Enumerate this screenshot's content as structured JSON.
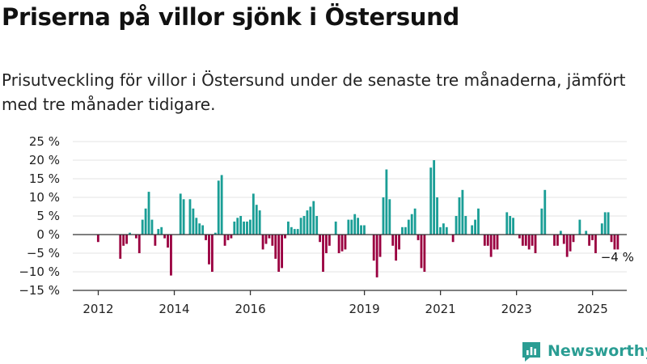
{
  "title": "Priserna på villor sjönk i Östersund",
  "subtitle": "Prisutveckling för villor i Östersund under de senaste tre månaderna, jämfört med tre månader tidigare.",
  "brand": "Newsworthy",
  "colors": {
    "positive": "#1a9e96",
    "negative": "#9a0040",
    "grid": "#e3e3e3",
    "axis": "#333333",
    "brand": "#2a9d93"
  },
  "chart_data": {
    "type": "bar",
    "ylim": [
      -15,
      25
    ],
    "yticks": [
      25,
      20,
      15,
      10,
      5,
      0,
      -5,
      -10,
      -15
    ],
    "ytick_labels": [
      "25 %",
      "20 %",
      "15 %",
      "10 %",
      "5 %",
      "0 %",
      "−5 %",
      "−10 %",
      "−15 %"
    ],
    "xticks": [
      2012,
      2014,
      2016,
      2019,
      2021,
      2023,
      2025
    ],
    "start_year": 2011.33,
    "bar_months": 1,
    "grid": true,
    "last_value_label": "−4 %",
    "values": [
      0,
      0,
      0,
      0,
      0,
      0,
      0,
      0,
      -2,
      0,
      0,
      0,
      0,
      0,
      0,
      -6.5,
      -3,
      -2.5,
      0.5,
      0,
      -1,
      -5,
      4,
      7,
      11.5,
      4,
      -3,
      1.5,
      2,
      -1,
      -3.5,
      -11,
      0,
      0,
      11,
      9.5,
      0,
      9.5,
      7,
      4.5,
      3,
      2.5,
      -1.5,
      -8,
      -10,
      0.5,
      14.5,
      16,
      -3,
      -1.5,
      -1,
      3.5,
      4.5,
      5,
      3.5,
      3.5,
      4,
      11,
      8,
      6.5,
      -4,
      -2.5,
      -1,
      -3,
      -6.5,
      -10,
      -9,
      -1,
      3.5,
      2,
      1.5,
      1.5,
      4.5,
      5,
      6.5,
      7.5,
      9,
      5,
      -2,
      -10,
      -5,
      -3,
      0,
      3.5,
      -5,
      -4.5,
      -4,
      4,
      4,
      5.5,
      4.5,
      2.5,
      2.5,
      0,
      0,
      -7,
      -11.5,
      -6,
      10,
      17.5,
      9.5,
      -3,
      -7,
      -4,
      2,
      2,
      4,
      5.5,
      7,
      -1.5,
      -9,
      -10,
      0,
      18,
      20,
      10,
      2,
      3,
      2,
      0,
      -2,
      5,
      10,
      12,
      5,
      0,
      2.5,
      4,
      7,
      0,
      -3,
      -3,
      -6,
      -4,
      -4,
      0,
      0,
      6,
      5,
      4.5,
      0,
      -1,
      -3,
      -3,
      -4,
      -3,
      -5,
      0,
      7,
      12,
      0,
      0,
      -3,
      -3,
      1,
      -2.5,
      -6,
      -4.5,
      -2,
      0,
      4,
      0,
      1,
      -3,
      -1.5,
      -5,
      0,
      3,
      6,
      6,
      -2,
      -4,
      -4
    ]
  }
}
